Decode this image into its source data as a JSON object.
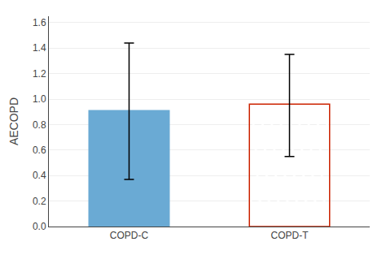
{
  "chart_data": {
    "type": "bar",
    "categories": [
      "COPD-C",
      "COPD-T"
    ],
    "values": [
      0.91,
      0.96
    ],
    "errors_up": [
      0.53,
      0.39
    ],
    "errors_down": [
      0.54,
      0.41
    ],
    "colors": [
      "#6aaad4",
      "#cc2200"
    ],
    "ylabel": "AECOPD",
    "ylim": [
      0,
      1.65
    ],
    "yticks": [
      {
        "value": 0,
        "label": "0.0"
      },
      0.2,
      0.4,
      0.6,
      0.8,
      {
        "value": 1.0,
        "label": "1.0"
      },
      1.2,
      1.4,
      1.6
    ],
    "grid": true
  }
}
